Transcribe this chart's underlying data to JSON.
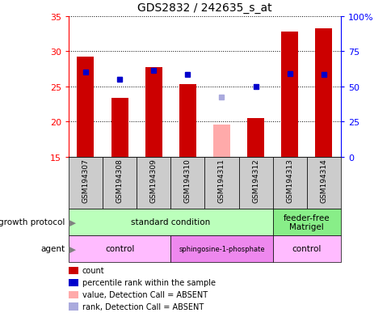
{
  "title": "GDS2832 / 242635_s_at",
  "samples": [
    "GSM194307",
    "GSM194308",
    "GSM194309",
    "GSM194310",
    "GSM194311",
    "GSM194312",
    "GSM194313",
    "GSM194314"
  ],
  "count_values": [
    29.2,
    23.4,
    27.7,
    25.3,
    null,
    20.5,
    32.8,
    33.2
  ],
  "count_absent": [
    null,
    null,
    null,
    null,
    19.5,
    null,
    null,
    null
  ],
  "rank_values": [
    27.0,
    26.0,
    27.3,
    26.7,
    null,
    25.0,
    26.8,
    26.7
  ],
  "rank_absent": [
    null,
    null,
    null,
    null,
    23.5,
    null,
    null,
    null
  ],
  "ylim_left": [
    15,
    35
  ],
  "ylim_right": [
    0,
    100
  ],
  "yticks_left": [
    15,
    20,
    25,
    30,
    35
  ],
  "yticks_right": [
    0,
    25,
    50,
    75,
    100
  ],
  "ytick_labels_right": [
    "0",
    "25",
    "50",
    "75",
    "100%"
  ],
  "bar_color": "#cc0000",
  "bar_absent_color": "#ffaaaa",
  "rank_color": "#0000cc",
  "rank_absent_color": "#aaaadd",
  "growth_protocol_groups": [
    {
      "label": "standard condition",
      "start": 0,
      "end": 6,
      "color": "#bbffbb"
    },
    {
      "label": "feeder-free\nMatrigel",
      "start": 6,
      "end": 8,
      "color": "#88ee88"
    }
  ],
  "agent_groups": [
    {
      "label": "control",
      "start": 0,
      "end": 3,
      "color": "#ffbbff"
    },
    {
      "label": "sphingosine-1-phosphate",
      "start": 3,
      "end": 6,
      "color": "#ee88ee"
    },
    {
      "label": "control",
      "start": 6,
      "end": 8,
      "color": "#ffbbff"
    }
  ],
  "legend_items": [
    {
      "label": "count",
      "color": "#cc0000"
    },
    {
      "label": "percentile rank within the sample",
      "color": "#0000cc"
    },
    {
      "label": "value, Detection Call = ABSENT",
      "color": "#ffaaaa"
    },
    {
      "label": "rank, Detection Call = ABSENT",
      "color": "#aaaadd"
    }
  ],
  "bar_width": 0.5,
  "rank_marker_size": 5,
  "sample_bg_color": "#cccccc"
}
